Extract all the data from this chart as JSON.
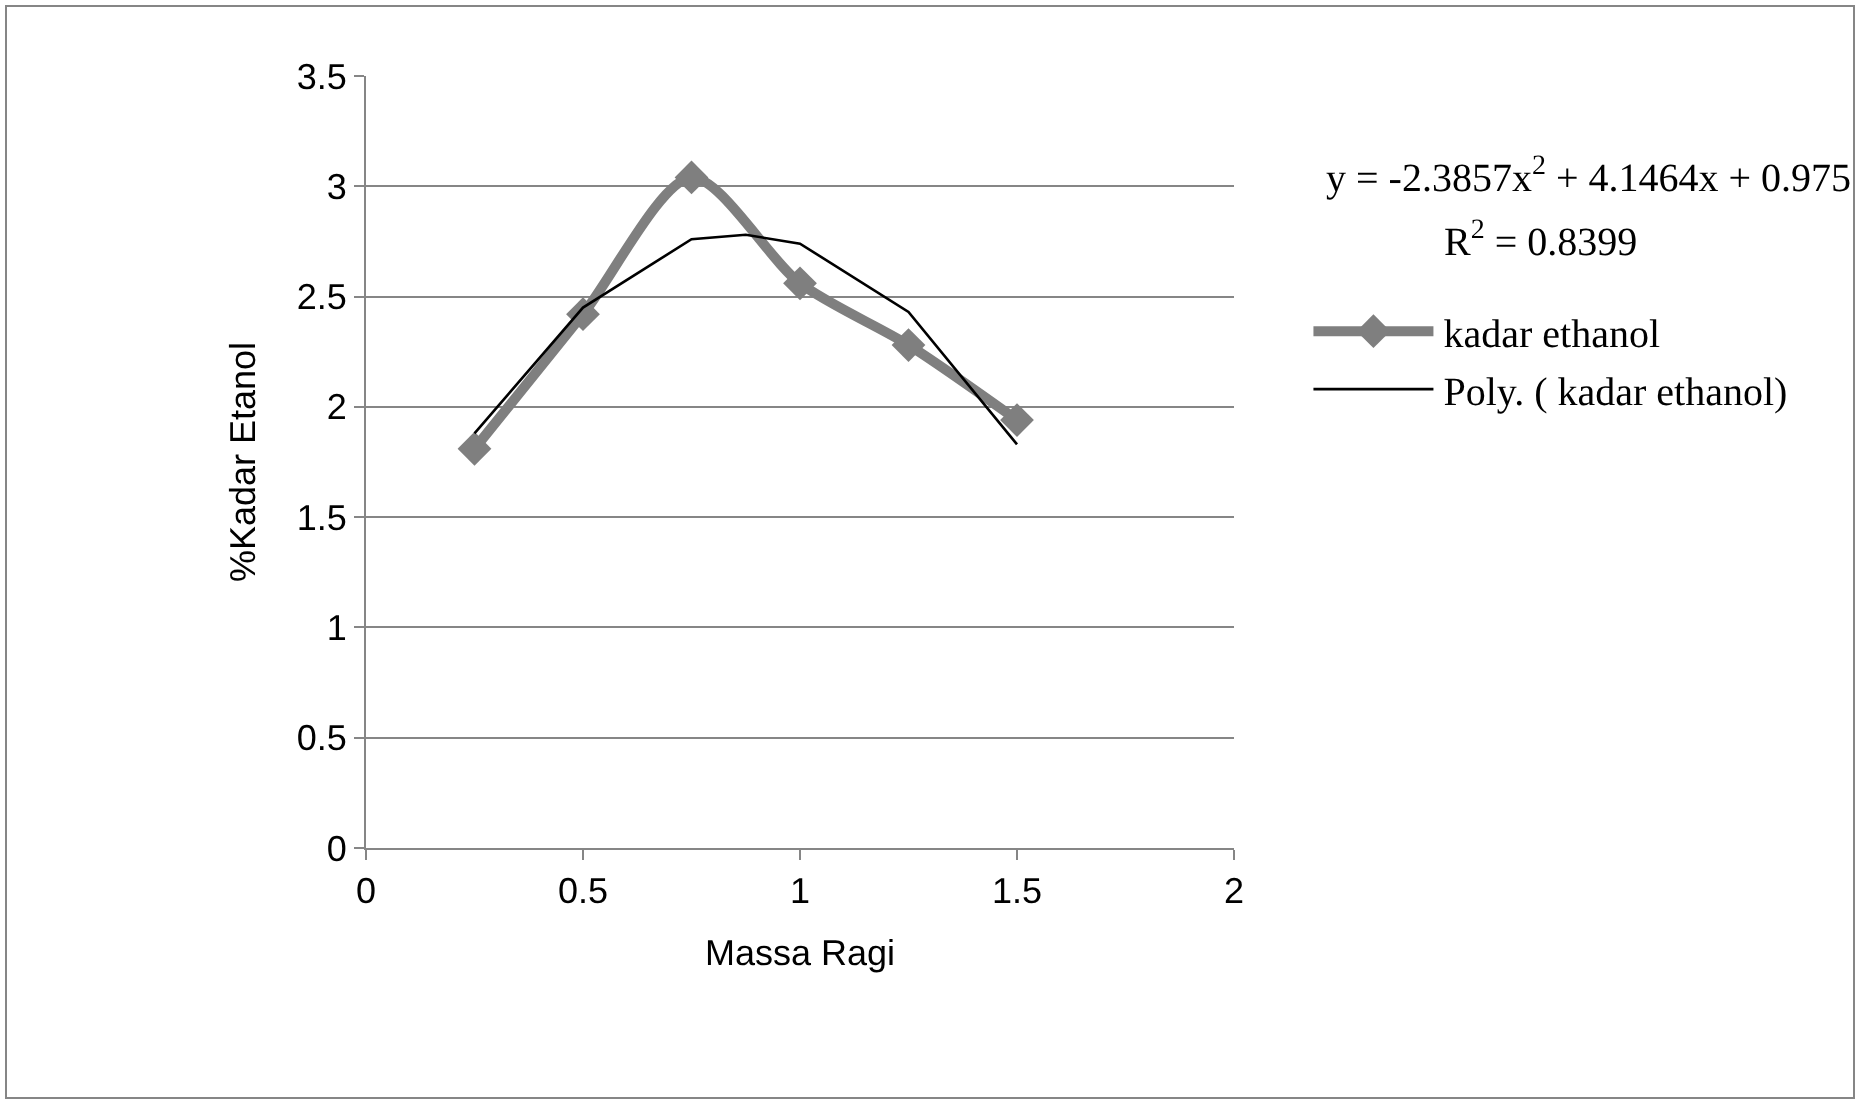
{
  "chart_data": {
    "type": "line",
    "xlabel": "Massa Ragi",
    "ylabel": "%Kadar Etanol",
    "xlim": [
      0,
      2
    ],
    "xticks": [
      0,
      0.5,
      1,
      1.5,
      2
    ],
    "ylim": [
      0,
      3.5
    ],
    "yticks": [
      0,
      0.5,
      1,
      1.5,
      2,
      2.5,
      3,
      3.5
    ],
    "grid": "y",
    "legend": "right",
    "annotations": [
      "y = -2.3857x$^{2}$ + 4.1464x + 0.975",
      "R$^{2}$ = 0.8399"
    ],
    "series": [
      {
        "name": "kadar ethanol",
        "color": "#7f7f7f",
        "marker": "diamond",
        "line_style": "solid",
        "x": [
          0.25,
          0.5,
          0.75,
          1.0,
          1.25,
          1.5
        ],
        "values": [
          1.81,
          2.42,
          3.04,
          2.56,
          2.28,
          1.94
        ]
      },
      {
        "name": "Poly. ( kadar ethanol)",
        "color": "#000000",
        "marker": "none",
        "line_style": "solid",
        "x": [
          0.25,
          0.5,
          0.75,
          0.875,
          1.0,
          1.25,
          1.5
        ],
        "values": [
          1.88,
          2.45,
          2.76,
          2.78,
          2.74,
          2.43,
          1.83
        ]
      }
    ]
  }
}
